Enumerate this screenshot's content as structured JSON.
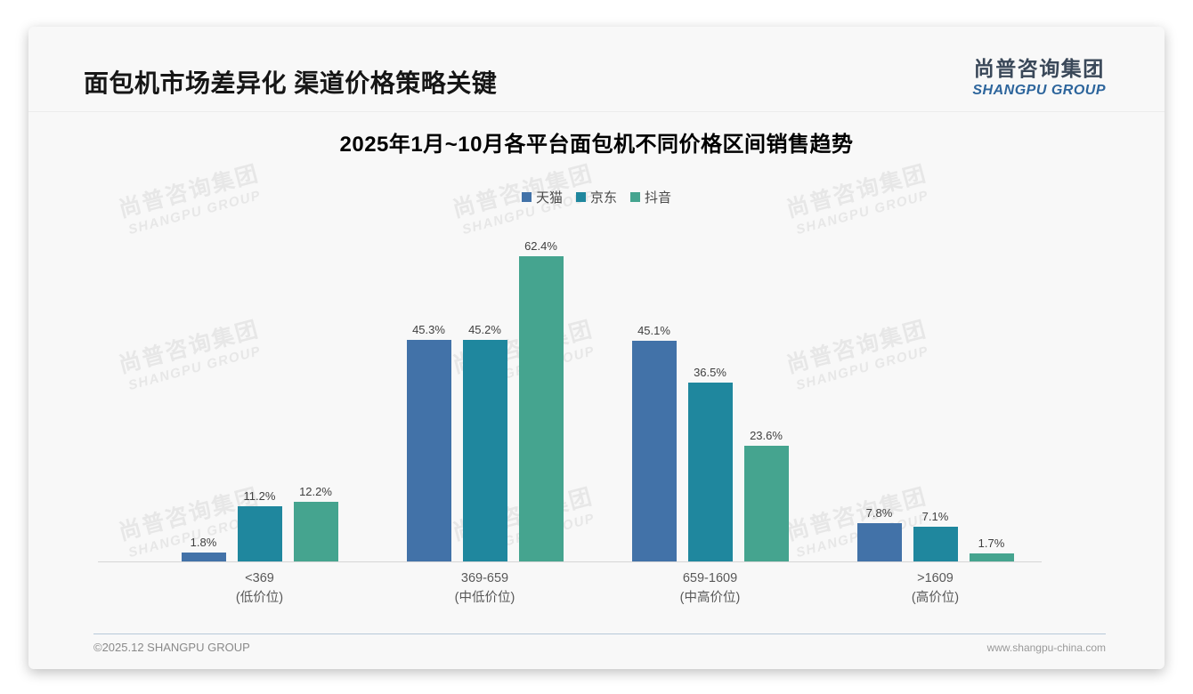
{
  "page": {
    "title": "面包机市场差异化 渠道价格策略关键",
    "logo": {
      "zh": "尚普咨询集团",
      "en": "SHANGPU GROUP"
    },
    "watermark": {
      "zh": "尚普咨询集团",
      "en": "SHANGPU GROUP"
    },
    "footer": {
      "left": "©2025.12 SHANGPU GROUP",
      "right": "www.shangpu-china.com"
    }
  },
  "chart_data": {
    "type": "bar",
    "title": "2025年1月~10月各平台面包机不同价格区间销售趋势",
    "categories": [
      "<369",
      "369-659",
      "659-1609",
      ">1609"
    ],
    "category_tiers": [
      "(低价位)",
      "(中低价位)",
      "(中高价位)",
      "(高价位)"
    ],
    "series": [
      {
        "name": "天猫",
        "color": "#4272a8",
        "values": [
          1.8,
          45.3,
          45.1,
          7.8
        ]
      },
      {
        "name": "京东",
        "color": "#1f879e",
        "values": [
          11.2,
          45.2,
          36.5,
          7.1
        ]
      },
      {
        "name": "抖音",
        "color": "#45a48f",
        "values": [
          12.2,
          62.4,
          23.6,
          1.7
        ]
      }
    ],
    "value_suffix": "%",
    "xlabel": "",
    "ylabel": "",
    "ylim": [
      0,
      70
    ],
    "grid": false,
    "legend_position": "top",
    "axis_line_color": "#d6d6d6"
  }
}
